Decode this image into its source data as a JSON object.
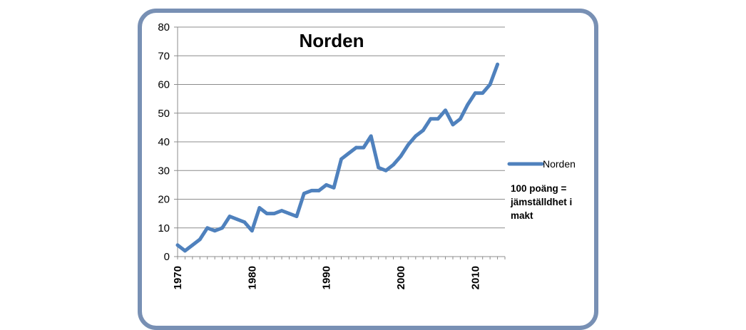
{
  "chart_data": {
    "type": "line",
    "title": "Norden",
    "xlabel": "",
    "ylabel": "",
    "xlim": [
      1970,
      2014
    ],
    "ylim": [
      0,
      80
    ],
    "yticks": [
      0,
      10,
      20,
      30,
      40,
      50,
      60,
      70,
      80
    ],
    "xticks": [
      1970,
      1980,
      1990,
      2000,
      2010
    ],
    "grid": true,
    "legend_position": "right",
    "series": [
      {
        "name": "Norden",
        "color": "#4f81bd",
        "x": [
          1970,
          1971,
          1972,
          1973,
          1974,
          1975,
          1976,
          1977,
          1978,
          1979,
          1980,
          1981,
          1982,
          1983,
          1984,
          1985,
          1986,
          1987,
          1988,
          1989,
          1990,
          1991,
          1992,
          1993,
          1994,
          1995,
          1996,
          1997,
          1998,
          1999,
          2000,
          2001,
          2002,
          2003,
          2004,
          2005,
          2006,
          2007,
          2008,
          2009,
          2010,
          2011,
          2012,
          2013
        ],
        "values": [
          4,
          2,
          4,
          6,
          10,
          9,
          10,
          14,
          13,
          12,
          9,
          17,
          15,
          15,
          16,
          15,
          14,
          22,
          23,
          23,
          25,
          24,
          34,
          36,
          38,
          38,
          42,
          31,
          30,
          32,
          35,
          39,
          42,
          44,
          48,
          48,
          51,
          46,
          48,
          53,
          57,
          57,
          60,
          67
        ]
      }
    ],
    "annotation": "100 poäng = jämställdhet i makt"
  }
}
